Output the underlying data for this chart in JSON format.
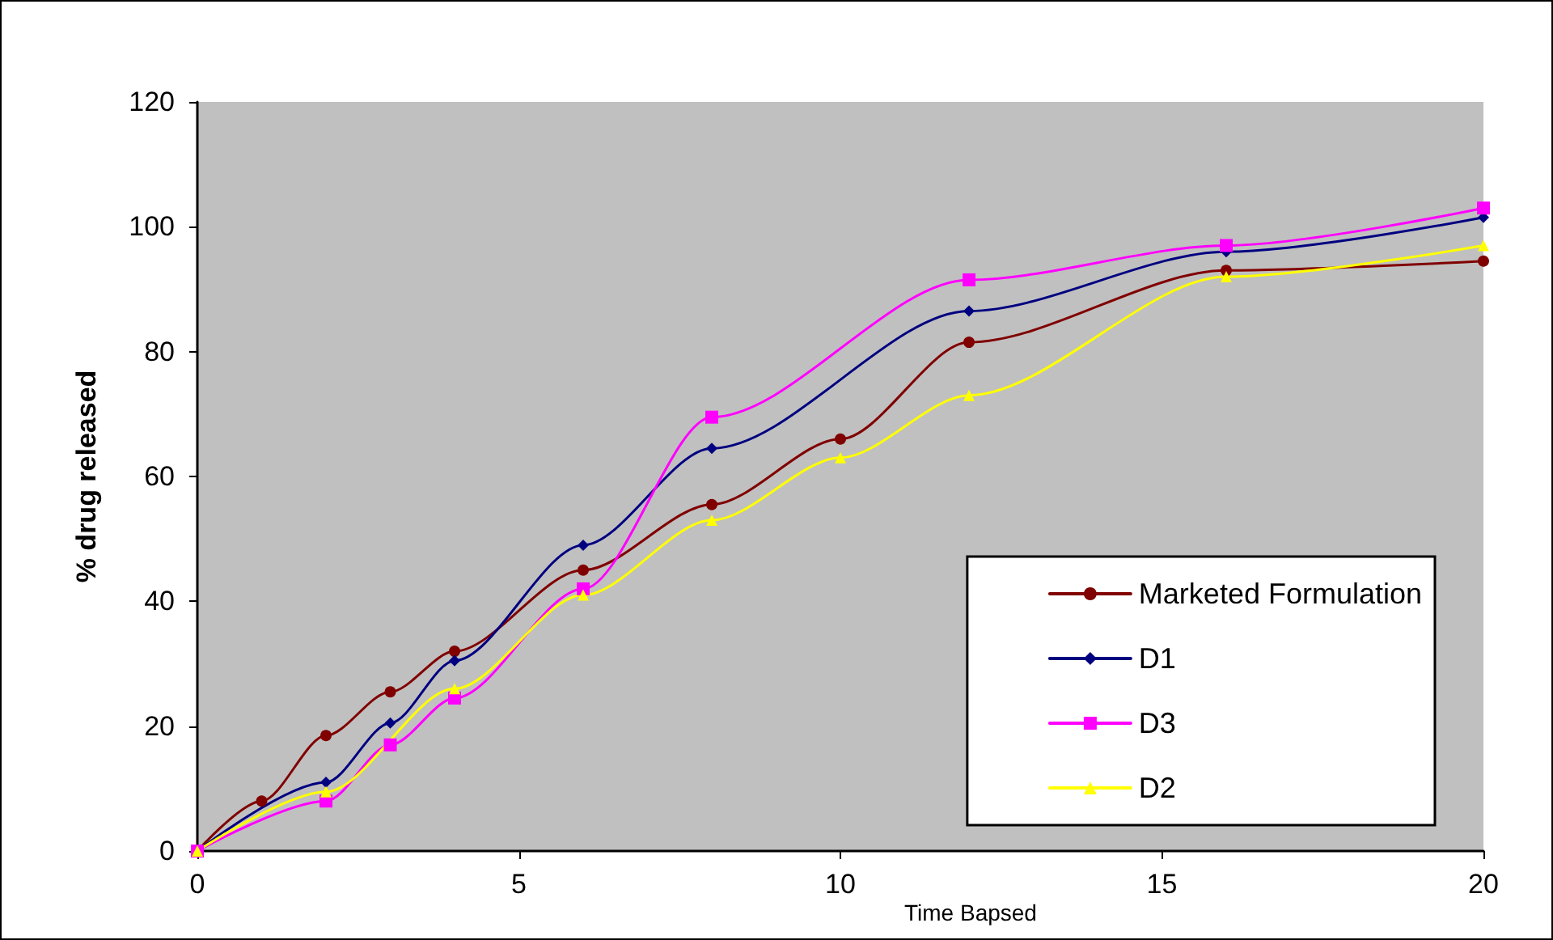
{
  "chart_data": {
    "type": "line",
    "xlabel": "Time Bapsed",
    "ylabel": "% drug released",
    "xlim": [
      0,
      20
    ],
    "xticks": [
      0,
      5,
      10,
      15,
      20
    ],
    "ylim": [
      0,
      120
    ],
    "yticks": [
      0,
      20,
      40,
      60,
      80,
      100,
      120
    ],
    "grid": false,
    "legend": "bottom right",
    "line_style": "solid",
    "series": [
      {
        "name": "Marketed Formulation",
        "color": "#800000",
        "marker": "circle",
        "x": [
          0,
          1,
          2,
          3,
          4,
          6,
          8,
          10,
          12,
          16,
          20
        ],
        "values": [
          0,
          8,
          18.5,
          25.5,
          32,
          45,
          55.5,
          66,
          81.5,
          93,
          94.5
        ]
      },
      {
        "name": "D1",
        "color": "#000080",
        "marker": "diamond",
        "x": [
          0,
          2,
          3,
          4,
          6,
          8,
          12,
          16,
          20
        ],
        "values": [
          0,
          11,
          20.5,
          30.5,
          49,
          64.5,
          86.5,
          96,
          101.5
        ]
      },
      {
        "name": "D3",
        "color": "#ff00ff",
        "marker": "square",
        "x": [
          0,
          2,
          3,
          4,
          6,
          8,
          12,
          16,
          20
        ],
        "values": [
          0,
          8,
          17,
          24.5,
          42,
          69.5,
          91.5,
          97,
          103
        ]
      },
      {
        "name": "D2",
        "color": "#ffff00",
        "marker": "triangle",
        "x": [
          0,
          2,
          4,
          6,
          8,
          10,
          12,
          16,
          20
        ],
        "values": [
          0,
          9.5,
          26,
          41,
          53,
          63,
          73,
          92,
          97
        ]
      }
    ]
  }
}
